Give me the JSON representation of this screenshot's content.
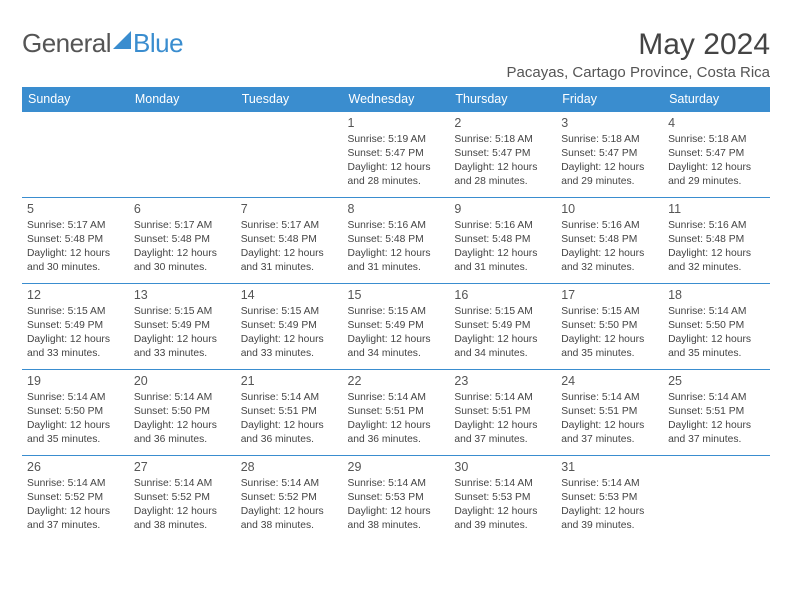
{
  "logo": {
    "part1": "General",
    "part2": "Blue"
  },
  "title": "May 2024",
  "location": "Pacayas, Cartago Province, Costa Rica",
  "days": [
    "Sunday",
    "Monday",
    "Tuesday",
    "Wednesday",
    "Thursday",
    "Friday",
    "Saturday"
  ],
  "colors": {
    "header": "#3a8dcf",
    "rule": "#3a8dcf",
    "text": "#444"
  },
  "label": {
    "sunrise": "Sunrise:",
    "sunset": "Sunset:",
    "daylight": "Daylight:"
  },
  "weeks": [
    [
      null,
      null,
      null,
      {
        "n": 1,
        "rise": "5:19 AM",
        "set": "5:47 PM",
        "dl": "12 hours and 28 minutes."
      },
      {
        "n": 2,
        "rise": "5:18 AM",
        "set": "5:47 PM",
        "dl": "12 hours and 28 minutes."
      },
      {
        "n": 3,
        "rise": "5:18 AM",
        "set": "5:47 PM",
        "dl": "12 hours and 29 minutes."
      },
      {
        "n": 4,
        "rise": "5:18 AM",
        "set": "5:47 PM",
        "dl": "12 hours and 29 minutes."
      }
    ],
    [
      {
        "n": 5,
        "rise": "5:17 AM",
        "set": "5:48 PM",
        "dl": "12 hours and 30 minutes."
      },
      {
        "n": 6,
        "rise": "5:17 AM",
        "set": "5:48 PM",
        "dl": "12 hours and 30 minutes."
      },
      {
        "n": 7,
        "rise": "5:17 AM",
        "set": "5:48 PM",
        "dl": "12 hours and 31 minutes."
      },
      {
        "n": 8,
        "rise": "5:16 AM",
        "set": "5:48 PM",
        "dl": "12 hours and 31 minutes."
      },
      {
        "n": 9,
        "rise": "5:16 AM",
        "set": "5:48 PM",
        "dl": "12 hours and 31 minutes."
      },
      {
        "n": 10,
        "rise": "5:16 AM",
        "set": "5:48 PM",
        "dl": "12 hours and 32 minutes."
      },
      {
        "n": 11,
        "rise": "5:16 AM",
        "set": "5:48 PM",
        "dl": "12 hours and 32 minutes."
      }
    ],
    [
      {
        "n": 12,
        "rise": "5:15 AM",
        "set": "5:49 PM",
        "dl": "12 hours and 33 minutes."
      },
      {
        "n": 13,
        "rise": "5:15 AM",
        "set": "5:49 PM",
        "dl": "12 hours and 33 minutes."
      },
      {
        "n": 14,
        "rise": "5:15 AM",
        "set": "5:49 PM",
        "dl": "12 hours and 33 minutes."
      },
      {
        "n": 15,
        "rise": "5:15 AM",
        "set": "5:49 PM",
        "dl": "12 hours and 34 minutes."
      },
      {
        "n": 16,
        "rise": "5:15 AM",
        "set": "5:49 PM",
        "dl": "12 hours and 34 minutes."
      },
      {
        "n": 17,
        "rise": "5:15 AM",
        "set": "5:50 PM",
        "dl": "12 hours and 35 minutes."
      },
      {
        "n": 18,
        "rise": "5:14 AM",
        "set": "5:50 PM",
        "dl": "12 hours and 35 minutes."
      }
    ],
    [
      {
        "n": 19,
        "rise": "5:14 AM",
        "set": "5:50 PM",
        "dl": "12 hours and 35 minutes."
      },
      {
        "n": 20,
        "rise": "5:14 AM",
        "set": "5:50 PM",
        "dl": "12 hours and 36 minutes."
      },
      {
        "n": 21,
        "rise": "5:14 AM",
        "set": "5:51 PM",
        "dl": "12 hours and 36 minutes."
      },
      {
        "n": 22,
        "rise": "5:14 AM",
        "set": "5:51 PM",
        "dl": "12 hours and 36 minutes."
      },
      {
        "n": 23,
        "rise": "5:14 AM",
        "set": "5:51 PM",
        "dl": "12 hours and 37 minutes."
      },
      {
        "n": 24,
        "rise": "5:14 AM",
        "set": "5:51 PM",
        "dl": "12 hours and 37 minutes."
      },
      {
        "n": 25,
        "rise": "5:14 AM",
        "set": "5:51 PM",
        "dl": "12 hours and 37 minutes."
      }
    ],
    [
      {
        "n": 26,
        "rise": "5:14 AM",
        "set": "5:52 PM",
        "dl": "12 hours and 37 minutes."
      },
      {
        "n": 27,
        "rise": "5:14 AM",
        "set": "5:52 PM",
        "dl": "12 hours and 38 minutes."
      },
      {
        "n": 28,
        "rise": "5:14 AM",
        "set": "5:52 PM",
        "dl": "12 hours and 38 minutes."
      },
      {
        "n": 29,
        "rise": "5:14 AM",
        "set": "5:53 PM",
        "dl": "12 hours and 38 minutes."
      },
      {
        "n": 30,
        "rise": "5:14 AM",
        "set": "5:53 PM",
        "dl": "12 hours and 39 minutes."
      },
      {
        "n": 31,
        "rise": "5:14 AM",
        "set": "5:53 PM",
        "dl": "12 hours and 39 minutes."
      },
      null
    ]
  ]
}
